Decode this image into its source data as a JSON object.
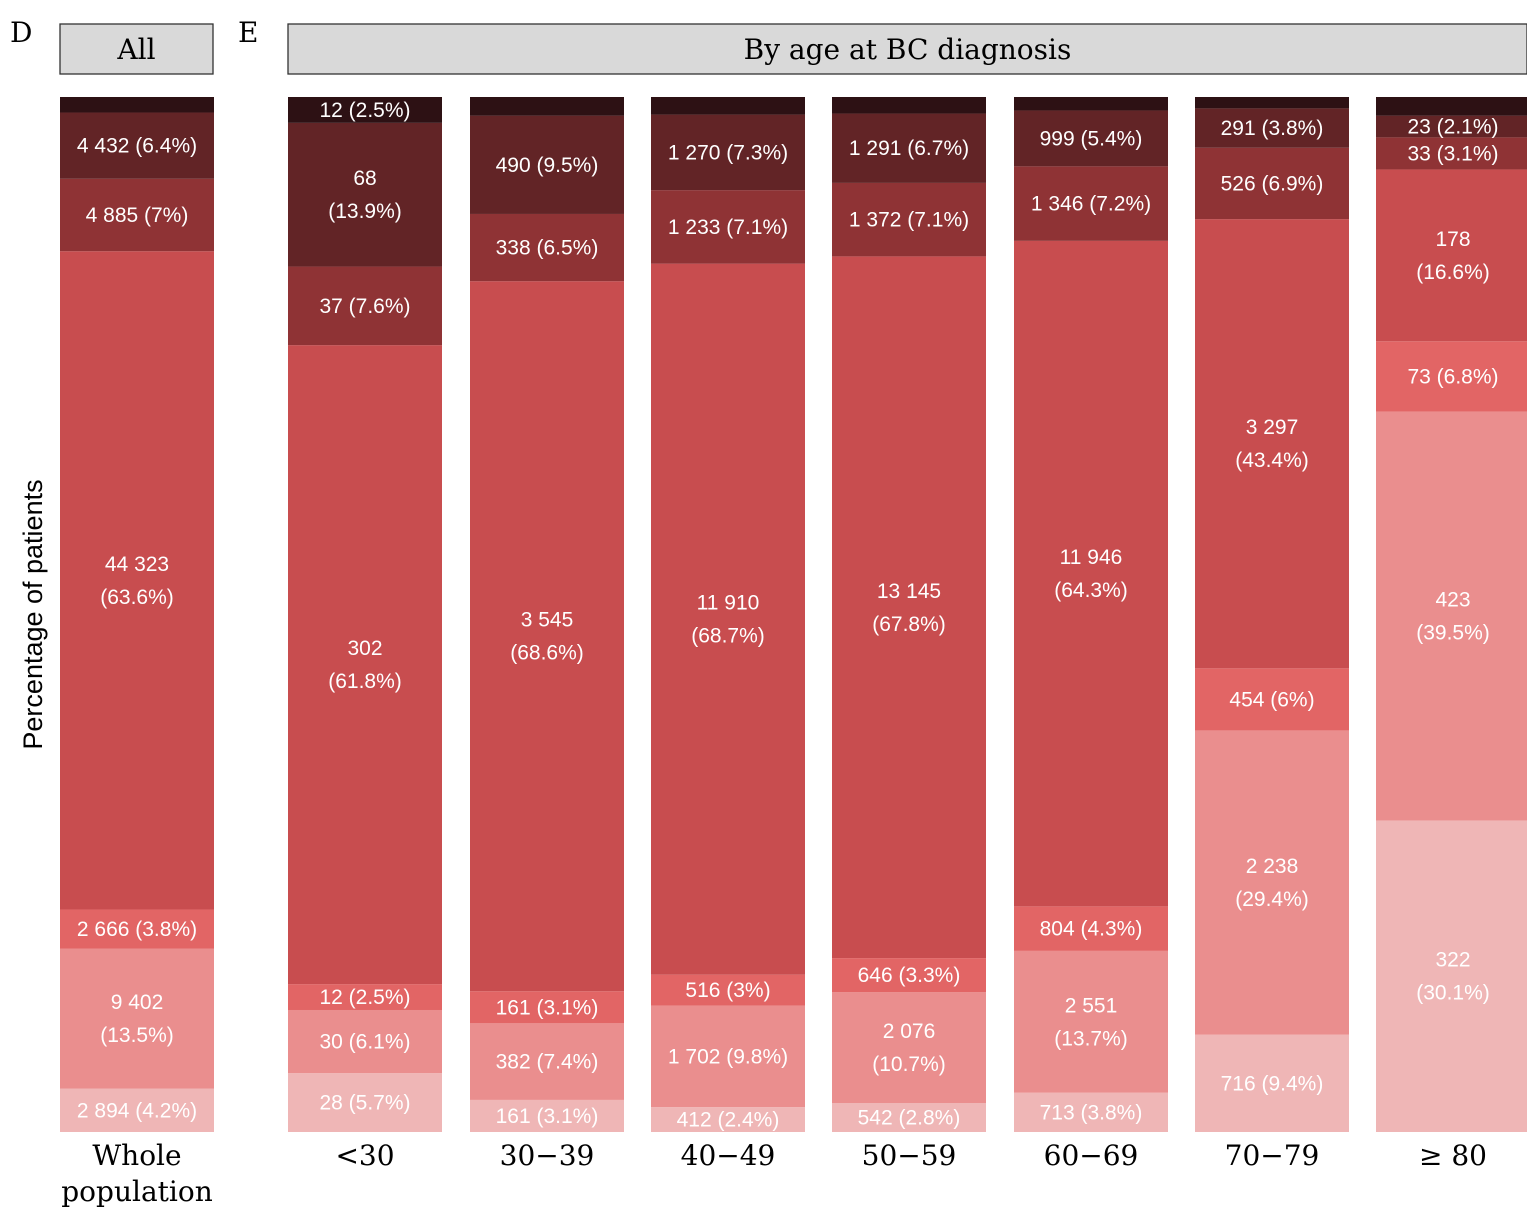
{
  "chart_data": {
    "type": "bar",
    "stacked": true,
    "ylabel": "Percentage of patients",
    "ylim": [
      0,
      100
    ],
    "colors": [
      "#efb6b6",
      "#ea8e8e",
      "#e26565",
      "#c84d4f",
      "#8f3335",
      "#622426",
      "#2d1114"
    ],
    "panels": [
      {
        "letter": "D",
        "strip": "All",
        "categories": [
          "Whole\npopulation"
        ],
        "bars": [
          {
            "category": "Whole\npopulation",
            "segments": [
              {
                "pct": 4.2,
                "label": "2 894 (4.2%)"
              },
              {
                "pct": 13.5,
                "label": "9 402\n(13.5%)"
              },
              {
                "pct": 3.8,
                "label": "2 666 (3.8%)"
              },
              {
                "pct": 63.6,
                "label": "44 323\n(63.6%)"
              },
              {
                "pct": 7.0,
                "label": "4 885 (7%)"
              },
              {
                "pct": 6.4,
                "label": "4 432 (6.4%)"
              },
              {
                "pct": 1.5,
                "label": ""
              }
            ]
          }
        ]
      },
      {
        "letter": "E",
        "strip": "By age at BC diagnosis",
        "categories": [
          "<30",
          "30−39",
          "40−49",
          "50−59",
          "60−69",
          "70−79",
          "≥ 80"
        ],
        "bars": [
          {
            "category": "<30",
            "segments": [
              {
                "pct": 5.7,
                "label": "28 (5.7%)"
              },
              {
                "pct": 6.1,
                "label": "30 (6.1%)"
              },
              {
                "pct": 2.5,
                "label": "12 (2.5%)"
              },
              {
                "pct": 61.8,
                "label": "302\n(61.8%)"
              },
              {
                "pct": 7.6,
                "label": "37 (7.6%)"
              },
              {
                "pct": 13.9,
                "label": "68\n(13.9%)"
              },
              {
                "pct": 2.5,
                "label": "12 (2.5%)"
              }
            ]
          },
          {
            "category": "30−39",
            "segments": [
              {
                "pct": 3.1,
                "label": "161 (3.1%)"
              },
              {
                "pct": 7.4,
                "label": "382 (7.4%)"
              },
              {
                "pct": 3.1,
                "label": "161 (3.1%)"
              },
              {
                "pct": 68.6,
                "label": "3 545\n(68.6%)"
              },
              {
                "pct": 6.5,
                "label": "338 (6.5%)"
              },
              {
                "pct": 9.5,
                "label": "490 (9.5%)"
              },
              {
                "pct": 1.8,
                "label": ""
              }
            ]
          },
          {
            "category": "40−49",
            "segments": [
              {
                "pct": 2.4,
                "label": "412 (2.4%)"
              },
              {
                "pct": 9.8,
                "label": "1 702 (9.8%)"
              },
              {
                "pct": 3.0,
                "label": "516 (3%)"
              },
              {
                "pct": 68.7,
                "label": "11 910\n(68.7%)"
              },
              {
                "pct": 7.1,
                "label": "1 233 (7.1%)"
              },
              {
                "pct": 7.3,
                "label": "1 270 (7.3%)"
              },
              {
                "pct": 1.7,
                "label": ""
              }
            ]
          },
          {
            "category": "50−59",
            "segments": [
              {
                "pct": 2.8,
                "label": "542 (2.8%)"
              },
              {
                "pct": 10.7,
                "label": "2 076\n(10.7%)"
              },
              {
                "pct": 3.3,
                "label": "646 (3.3%)"
              },
              {
                "pct": 67.8,
                "label": "13 145\n(67.8%)"
              },
              {
                "pct": 7.1,
                "label": "1 372 (7.1%)"
              },
              {
                "pct": 6.7,
                "label": "1 291 (6.7%)"
              },
              {
                "pct": 1.6,
                "label": ""
              }
            ]
          },
          {
            "category": "60−69",
            "segments": [
              {
                "pct": 3.8,
                "label": "713 (3.8%)"
              },
              {
                "pct": 13.7,
                "label": "2 551\n(13.7%)"
              },
              {
                "pct": 4.3,
                "label": "804 (4.3%)"
              },
              {
                "pct": 64.3,
                "label": "11 946\n(64.3%)"
              },
              {
                "pct": 7.2,
                "label": "1 346 (7.2%)"
              },
              {
                "pct": 5.4,
                "label": "999 (5.4%)"
              },
              {
                "pct": 1.3,
                "label": ""
              }
            ]
          },
          {
            "category": "70−79",
            "segments": [
              {
                "pct": 9.4,
                "label": "716 (9.4%)"
              },
              {
                "pct": 29.4,
                "label": "2 238\n(29.4%)"
              },
              {
                "pct": 6.0,
                "label": "454 (6%)"
              },
              {
                "pct": 43.4,
                "label": "3 297\n(43.4%)"
              },
              {
                "pct": 6.9,
                "label": "526 (6.9%)"
              },
              {
                "pct": 3.8,
                "label": "291 (3.8%)"
              },
              {
                "pct": 1.1,
                "label": ""
              }
            ]
          },
          {
            "category": "≥ 80",
            "segments": [
              {
                "pct": 30.1,
                "label": "322\n(30.1%)"
              },
              {
                "pct": 39.5,
                "label": "423\n(39.5%)"
              },
              {
                "pct": 6.8,
                "label": "73 (6.8%)"
              },
              {
                "pct": 16.6,
                "label": "178\n(16.6%)"
              },
              {
                "pct": 3.1,
                "label": "33 (3.1%)"
              },
              {
                "pct": 2.1,
                "label": "23 (2.1%)"
              },
              {
                "pct": 1.8,
                "label": ""
              }
            ]
          }
        ]
      }
    ]
  }
}
